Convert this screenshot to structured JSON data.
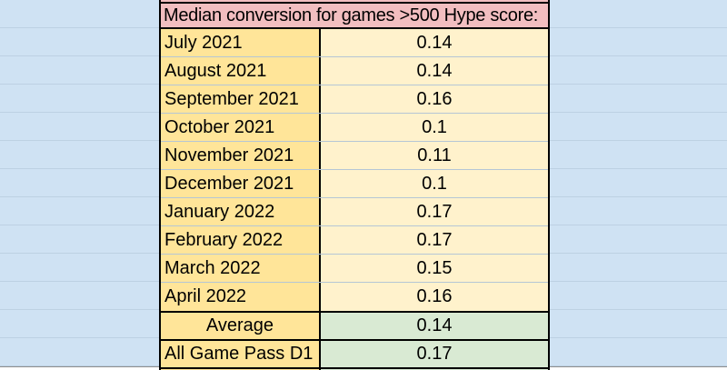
{
  "table": {
    "title": "Median conversion for games >500 Hype score:",
    "rows": [
      {
        "label": "July 2021",
        "value": "0.14"
      },
      {
        "label": "August 2021",
        "value": "0.14"
      },
      {
        "label": "September 2021",
        "value": "0.16"
      },
      {
        "label": "October 2021",
        "value": "0.1"
      },
      {
        "label": "November 2021",
        "value": "0.11"
      },
      {
        "label": "December 2021",
        "value": "0.1"
      },
      {
        "label": "January 2022",
        "value": "0.17"
      },
      {
        "label": "February 2022",
        "value": "0.17"
      },
      {
        "label": "March 2022",
        "value": "0.15"
      },
      {
        "label": "April 2022",
        "value": "0.16"
      }
    ],
    "average_row": {
      "label": "Average",
      "value": "0.14"
    },
    "game_pass_row": {
      "label": "All Game Pass D1",
      "value": "0.17"
    }
  },
  "chart_data": {
    "type": "table",
    "title": "Median conversion for games >500 Hype score:",
    "categories": [
      "July 2021",
      "August 2021",
      "September 2021",
      "October 2021",
      "November 2021",
      "December 2021",
      "January 2022",
      "February 2022",
      "March 2022",
      "April 2022"
    ],
    "values": [
      0.14,
      0.14,
      0.16,
      0.1,
      0.11,
      0.1,
      0.17,
      0.17,
      0.15,
      0.16
    ],
    "summary": {
      "Average": 0.14,
      "All Game Pass D1": 0.17
    }
  },
  "colors": {
    "sheet_bg": "#cfe2f3",
    "grid_line": "#bdd1e3",
    "header_bg": "#f2bec0",
    "label_bg": "#ffe599",
    "value_bg": "#fff2cc",
    "summary_value_bg": "#d9ead3",
    "border": "#000000",
    "cell_grid": "rgba(0,0,0,0.12)",
    "edge_line": "#8e8e8e",
    "edge_bg": "#ffffff"
  }
}
